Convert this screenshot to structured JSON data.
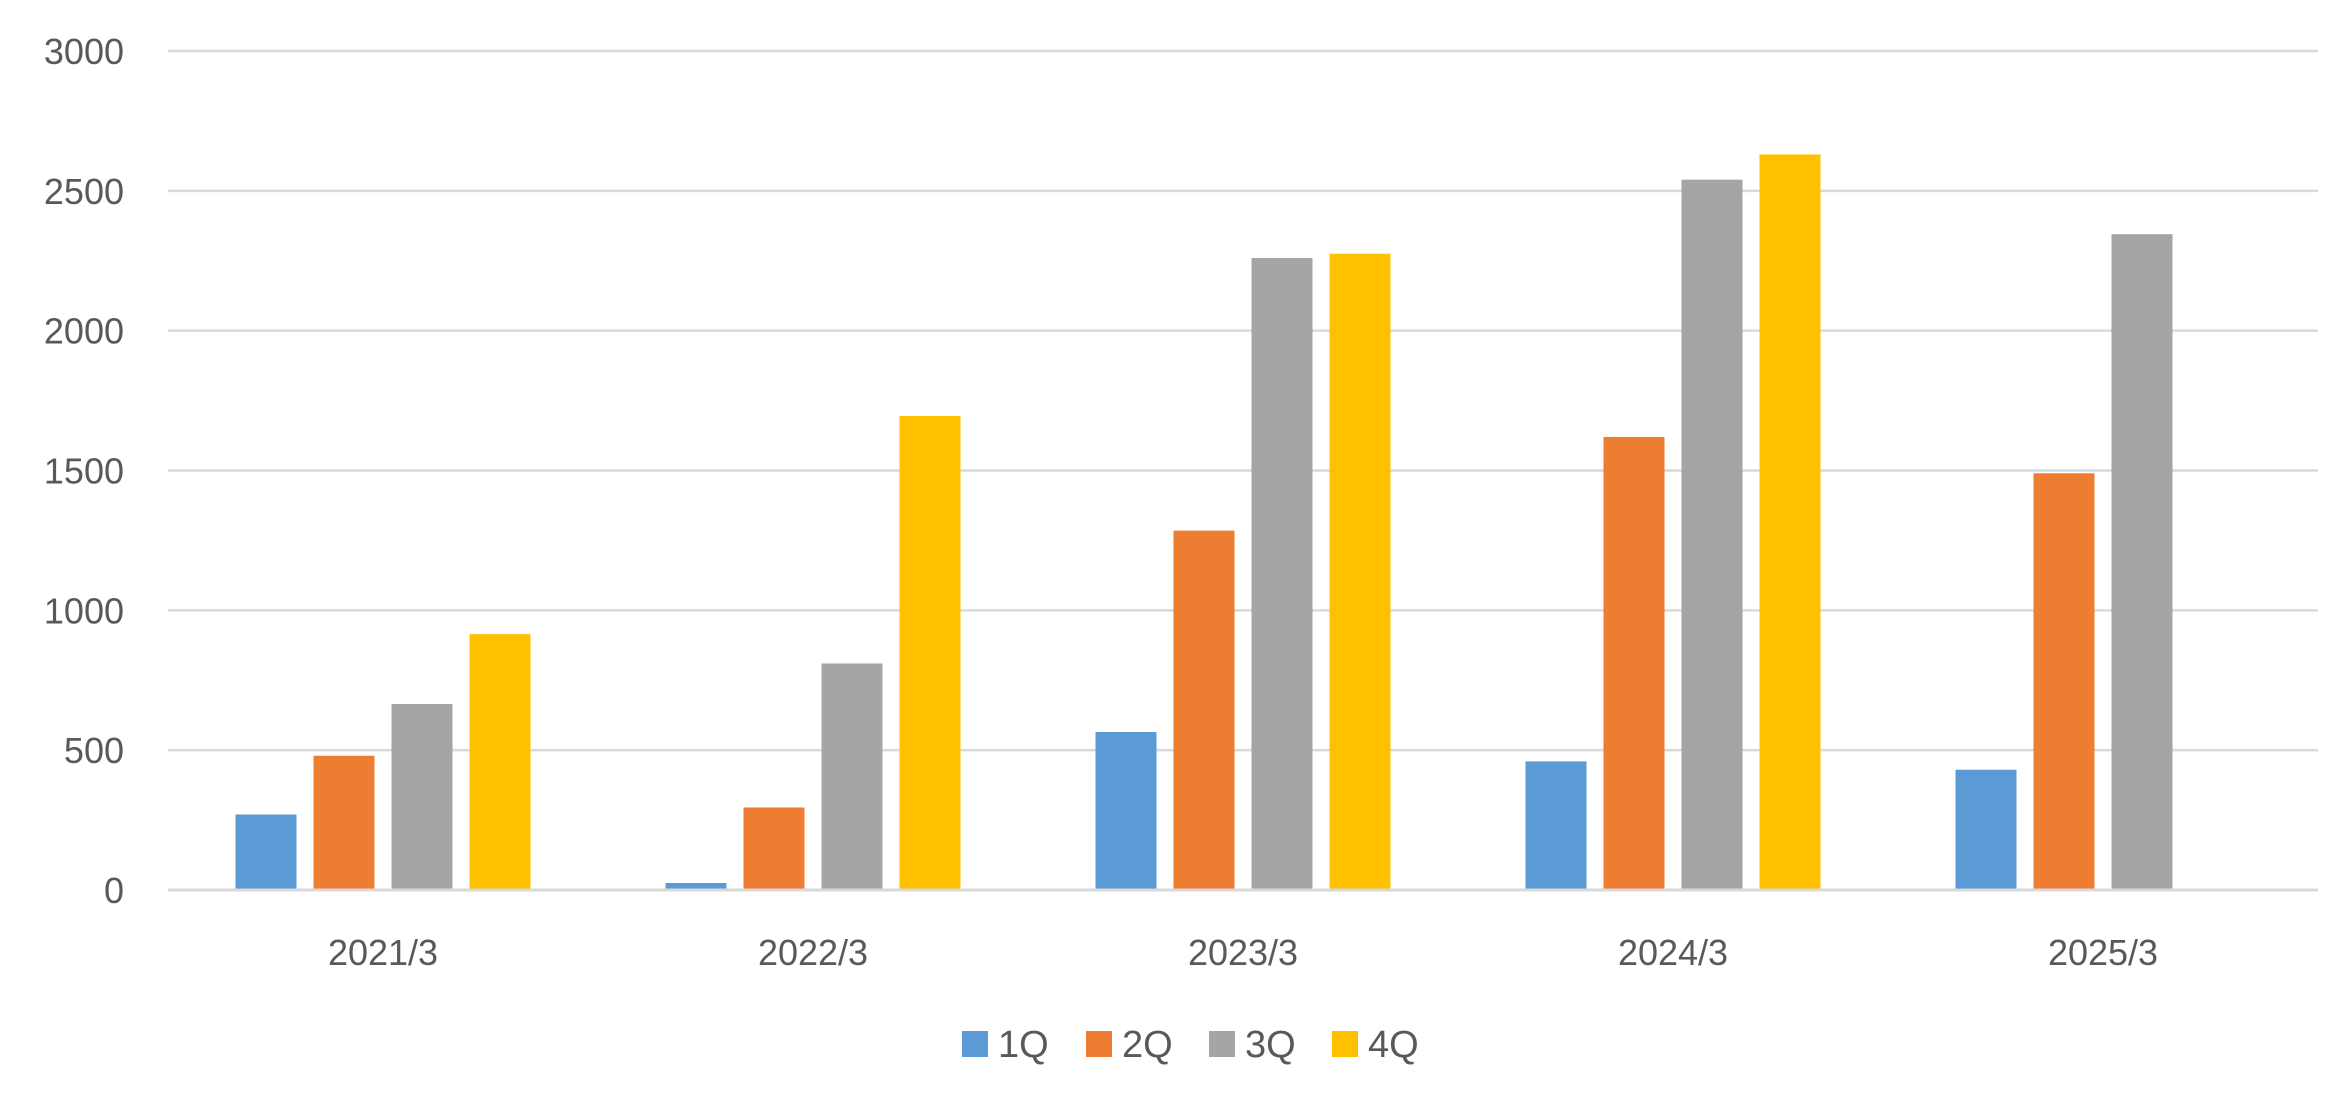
{
  "chart_data": {
    "type": "bar",
    "title": "",
    "xlabel": "",
    "ylabel": "",
    "categories": [
      "2021/3",
      "2022/3",
      "2023/3",
      "2024/3",
      "2025/3"
    ],
    "series": [
      {
        "name": "1Q",
        "color": "#5b9bd5",
        "values": [
          270,
          25,
          565,
          460,
          430
        ]
      },
      {
        "name": "2Q",
        "color": "#ed7d31",
        "values": [
          480,
          295,
          1285,
          1620,
          1490
        ]
      },
      {
        "name": "3Q",
        "color": "#a5a5a5",
        "values": [
          665,
          810,
          2260,
          2540,
          2345
        ]
      },
      {
        "name": "4Q",
        "color": "#ffc000",
        "values": [
          915,
          1695,
          2275,
          2630,
          null
        ]
      }
    ],
    "ylim": [
      0,
      3000
    ],
    "yticks": [
      0,
      500,
      1000,
      1500,
      2000,
      2500,
      3000
    ],
    "grid": true,
    "legend_position": "bottom"
  }
}
